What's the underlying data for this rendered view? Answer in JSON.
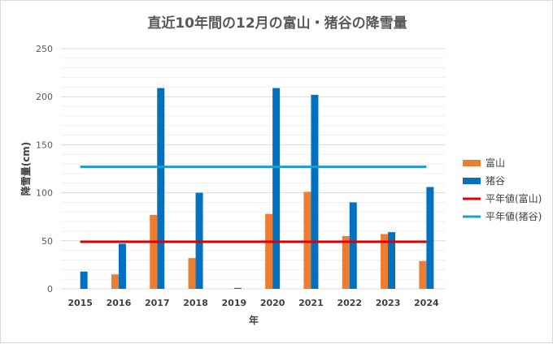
{
  "chart_data": {
    "type": "bar",
    "title": "直近10年間の12月の富山・猪谷の降雪量",
    "xlabel": "年",
    "ylabel": "降雪量(cm)",
    "ylim": [
      0,
      250
    ],
    "yticks": [
      0,
      50,
      100,
      150,
      200,
      250
    ],
    "grid": true,
    "legend_position": "right",
    "categories": [
      "2015",
      "2016",
      "2017",
      "2018",
      "2019",
      "2020",
      "2021",
      "2022",
      "2023",
      "2024"
    ],
    "series": [
      {
        "name": "富山",
        "kind": "bar",
        "color": "#ed7d31",
        "values": [
          0,
          15,
          77,
          32,
          0,
          78,
          101,
          55,
          57,
          29
        ]
      },
      {
        "name": "猪谷",
        "kind": "bar",
        "color": "#0070c0",
        "values": [
          18,
          47,
          209,
          100,
          1,
          209,
          202,
          90,
          59,
          106
        ]
      },
      {
        "name": "平年値(富山)",
        "kind": "line",
        "color": "#e00000",
        "value": 49
      },
      {
        "name": "平年値(猪谷)",
        "kind": "line",
        "color": "#1f9bd1",
        "value": 127
      }
    ]
  }
}
